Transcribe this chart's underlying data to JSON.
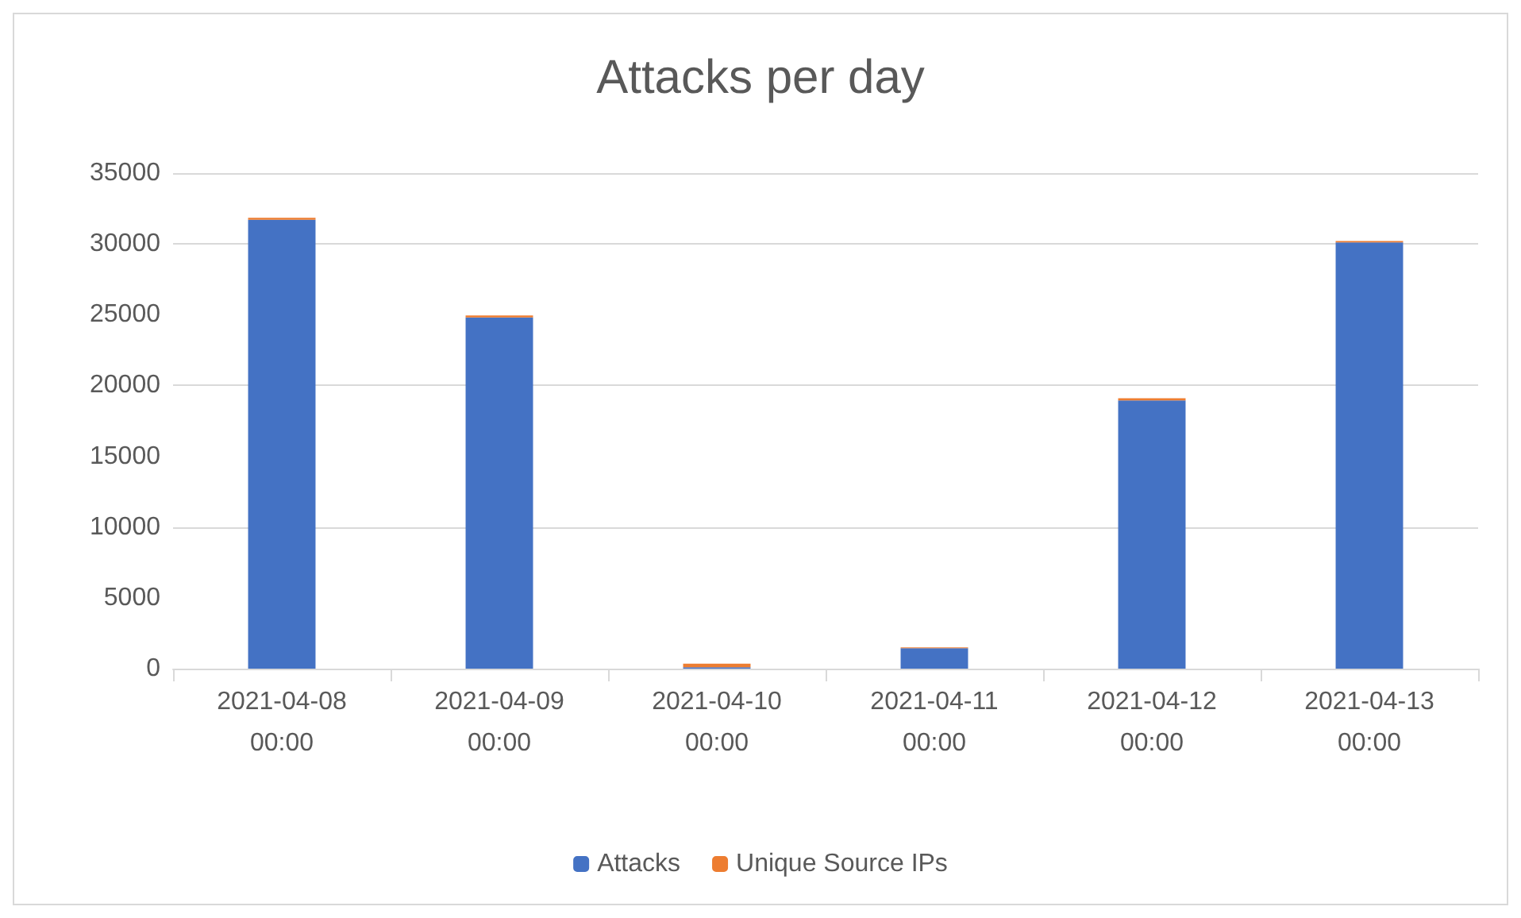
{
  "chart_data": {
    "type": "bar",
    "title": "Attacks per day",
    "stacked": true,
    "categories": [
      "2021-04-08\n00:00",
      "2021-04-09\n00:00",
      "2021-04-10\n00:00",
      "2021-04-11\n00:00",
      "2021-04-12\n00:00",
      "2021-04-13\n00:00"
    ],
    "series": [
      {
        "name": "Attacks",
        "color": "#4472c4",
        "values": [
          31700,
          24800,
          100,
          1450,
          18950,
          30100
        ]
      },
      {
        "name": "Unique Source IPs",
        "color": "#ed7d31",
        "values": [
          150,
          150,
          250,
          50,
          150,
          100
        ]
      }
    ],
    "ylim": [
      0,
      35000
    ],
    "yticks": [
      0,
      5000,
      10000,
      15000,
      20000,
      25000,
      30000,
      35000
    ],
    "grid": "y",
    "legend": "bottom"
  }
}
